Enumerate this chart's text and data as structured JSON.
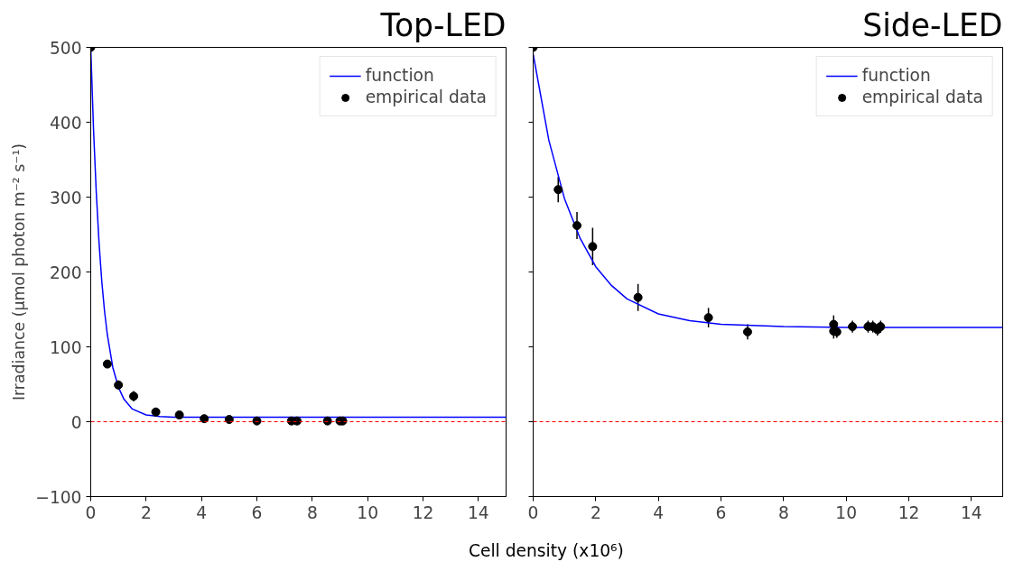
{
  "chart_data": [
    {
      "type": "scatter",
      "title": "Top-LED",
      "xlabel": "Cell density (x10⁶)",
      "ylabel": "Irradiance (µmol photon m⁻² s⁻¹)",
      "xlim": [
        0,
        15
      ],
      "ylim": [
        -100,
        500
      ],
      "xticks": [
        0,
        2,
        4,
        6,
        8,
        10,
        12,
        14
      ],
      "yticks": [
        -100,
        0,
        100,
        200,
        300,
        400,
        500
      ],
      "legend": "top right",
      "grid": false,
      "series": [
        {
          "name": "function",
          "type": "line",
          "color": "#0000ff",
          "x": [
            0,
            0.1,
            0.2,
            0.3,
            0.4,
            0.5,
            0.6,
            0.8,
            1.0,
            1.2,
            1.5,
            2.0,
            2.5,
            3.0,
            15
          ],
          "values": [
            500,
            391,
            306,
            239,
            187,
            147,
            116,
            72,
            46,
            30,
            17,
            9,
            7,
            6,
            6
          ]
        },
        {
          "name": "empirical data",
          "marker": "circle",
          "color": "#000000",
          "x": [
            0,
            0.6,
            1.0,
            1.55,
            2.35,
            3.2,
            4.1,
            5.0,
            6.0,
            7.25,
            7.45,
            8.55,
            9.0,
            9.1
          ],
          "values": [
            500,
            77,
            49,
            34,
            13,
            9,
            4,
            3,
            1,
            1,
            1,
            1,
            1,
            1
          ],
          "errors": [
            null,
            5,
            6,
            7,
            3,
            3,
            2,
            2,
            null,
            null,
            null,
            null,
            null,
            null
          ]
        }
      ],
      "ref_lines": [
        {
          "axis": "y",
          "value": 0,
          "label": null,
          "color": "#ff0000",
          "line_style": "dashed"
        }
      ]
    },
    {
      "type": "scatter",
      "title": "Side-LED",
      "xlim": [
        0,
        15
      ],
      "ylim": [
        -100,
        500
      ],
      "xticks": [
        0,
        2,
        4,
        6,
        8,
        10,
        12,
        14
      ],
      "yticks": [
        -100,
        0,
        100,
        200,
        300,
        400,
        500
      ],
      "tick_labels": "x",
      "legend": "top right",
      "grid": false,
      "series": [
        {
          "name": "function",
          "type": "line",
          "color": "#0000ff",
          "x": [
            0,
            0.5,
            1,
            1.5,
            2,
            2.5,
            3,
            4,
            5,
            6,
            8,
            10,
            15
          ],
          "values": [
            491,
            376,
            298,
            245,
            207,
            182,
            164,
            144,
            135,
            130,
            127,
            126,
            126
          ]
        },
        {
          "name": "empirical data",
          "marker": "circle",
          "color": "#000000",
          "x": [
            0,
            0.8,
            1.4,
            1.9,
            3.35,
            5.6,
            6.85,
            9.6,
            9.6,
            9.7,
            10.2,
            10.7,
            10.85,
            11.0,
            11.1
          ],
          "values": [
            500,
            310,
            262,
            234,
            166,
            139,
            120,
            130,
            121,
            120,
            127,
            127,
            127,
            123,
            127
          ],
          "errors": [
            null,
            17,
            18,
            25,
            18,
            13,
            10,
            12,
            10,
            8,
            8,
            8,
            8,
            8,
            8
          ]
        }
      ],
      "ref_lines": [
        {
          "axis": "y",
          "value": 0,
          "label": null,
          "color": "#ff0000",
          "line_style": "dashed"
        }
      ]
    }
  ]
}
